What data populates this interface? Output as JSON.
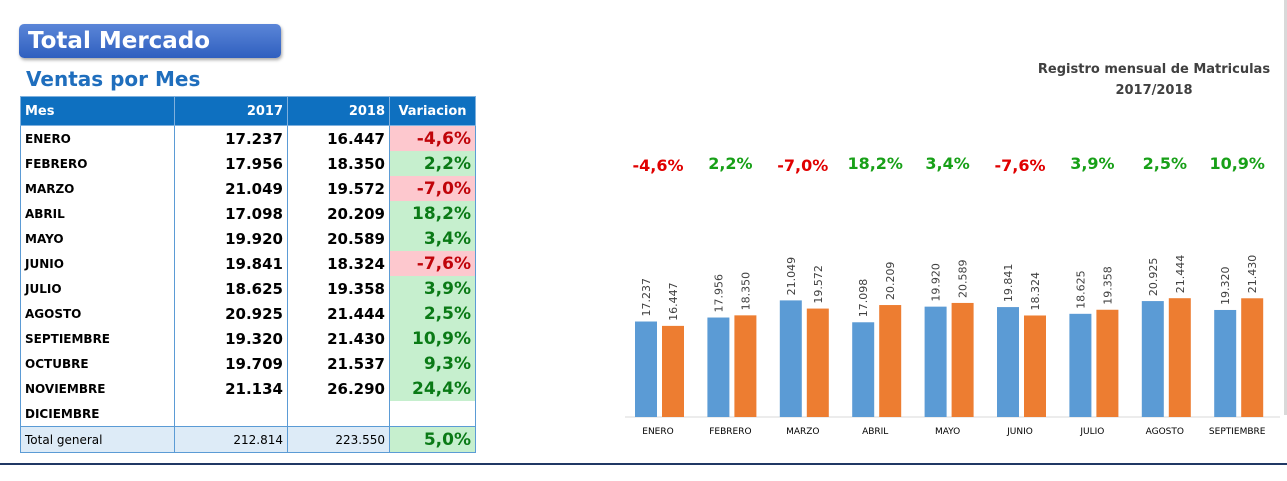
{
  "header": {
    "title": "Total Mercado",
    "subtitle": "Ventas por Mes"
  },
  "table": {
    "columns": [
      "Mes",
      "2017",
      "2018",
      "Variacion"
    ],
    "rows": [
      {
        "mes": "ENERO",
        "y2017": "17.237",
        "y2018": "16.447",
        "variacion": "-4,6%",
        "sign": "neg"
      },
      {
        "mes": "FEBRERO",
        "y2017": "17.956",
        "y2018": "18.350",
        "variacion": "2,2%",
        "sign": "pos"
      },
      {
        "mes": "MARZO",
        "y2017": "21.049",
        "y2018": "19.572",
        "variacion": "-7,0%",
        "sign": "neg"
      },
      {
        "mes": "ABRIL",
        "y2017": "17.098",
        "y2018": "20.209",
        "variacion": "18,2%",
        "sign": "pos"
      },
      {
        "mes": "MAYO",
        "y2017": "19.920",
        "y2018": "20.589",
        "variacion": "3,4%",
        "sign": "pos"
      },
      {
        "mes": "JUNIO",
        "y2017": "19.841",
        "y2018": "18.324",
        "variacion": "-7,6%",
        "sign": "neg"
      },
      {
        "mes": "JULIO",
        "y2017": "18.625",
        "y2018": "19.358",
        "variacion": "3,9%",
        "sign": "pos"
      },
      {
        "mes": "AGOSTO",
        "y2017": "20.925",
        "y2018": "21.444",
        "variacion": "2,5%",
        "sign": "pos"
      },
      {
        "mes": "SEPTIEMBRE",
        "y2017": "19.320",
        "y2018": "21.430",
        "variacion": "10,9%",
        "sign": "pos"
      },
      {
        "mes": "OCTUBRE",
        "y2017": "19.709",
        "y2018": "21.537",
        "variacion": "9,3%",
        "sign": "pos"
      },
      {
        "mes": "NOVIEMBRE",
        "y2017": "21.134",
        "y2018": "26.290",
        "variacion": "24,4%",
        "sign": "pos"
      },
      {
        "mes": "DICIEMBRE",
        "y2017": "",
        "y2018": "",
        "variacion": "",
        "sign": "none"
      }
    ],
    "total": {
      "label": "Total general",
      "y2017": "212.814",
      "y2018": "223.550",
      "variacion": "5,0%"
    }
  },
  "chart_data": {
    "type": "bar",
    "title_line1": "Registro mensual de Matriculas",
    "title_line2": "2017/2018",
    "categories": [
      "ENERO",
      "FEBRERO",
      "MARZO",
      "ABRIL",
      "MAYO",
      "JUNIO",
      "JULIO",
      "AGOSTO",
      "SEPTIEMBRE"
    ],
    "series": [
      {
        "name": "2017",
        "values": [
          17237,
          17956,
          21049,
          17098,
          19920,
          19841,
          18625,
          20925,
          19320
        ],
        "labels": [
          "17.237",
          "17.956",
          "21.049",
          "17.098",
          "19.920",
          "19.841",
          "18.625",
          "20.925",
          "19.320"
        ],
        "color": "#5b9bd5"
      },
      {
        "name": "2018",
        "values": [
          16447,
          18350,
          19572,
          20209,
          20589,
          18324,
          19358,
          21444,
          21430
        ],
        "labels": [
          "16.447",
          "18.350",
          "19.572",
          "20.209",
          "20.589",
          "18.324",
          "19.358",
          "21.444",
          "21.430"
        ],
        "color": "#ed7d31"
      }
    ],
    "variations": [
      "-4,6%",
      "2,2%",
      "-7,0%",
      "18,2%",
      "3,4%",
      "-7,6%",
      "3,9%",
      "2,5%",
      "10,9%"
    ],
    "variation_colors": {
      "neg": "#e00000",
      "pos": "#18a018"
    },
    "ylim": [
      0,
      50000
    ],
    "grid": false,
    "legend": "none"
  }
}
